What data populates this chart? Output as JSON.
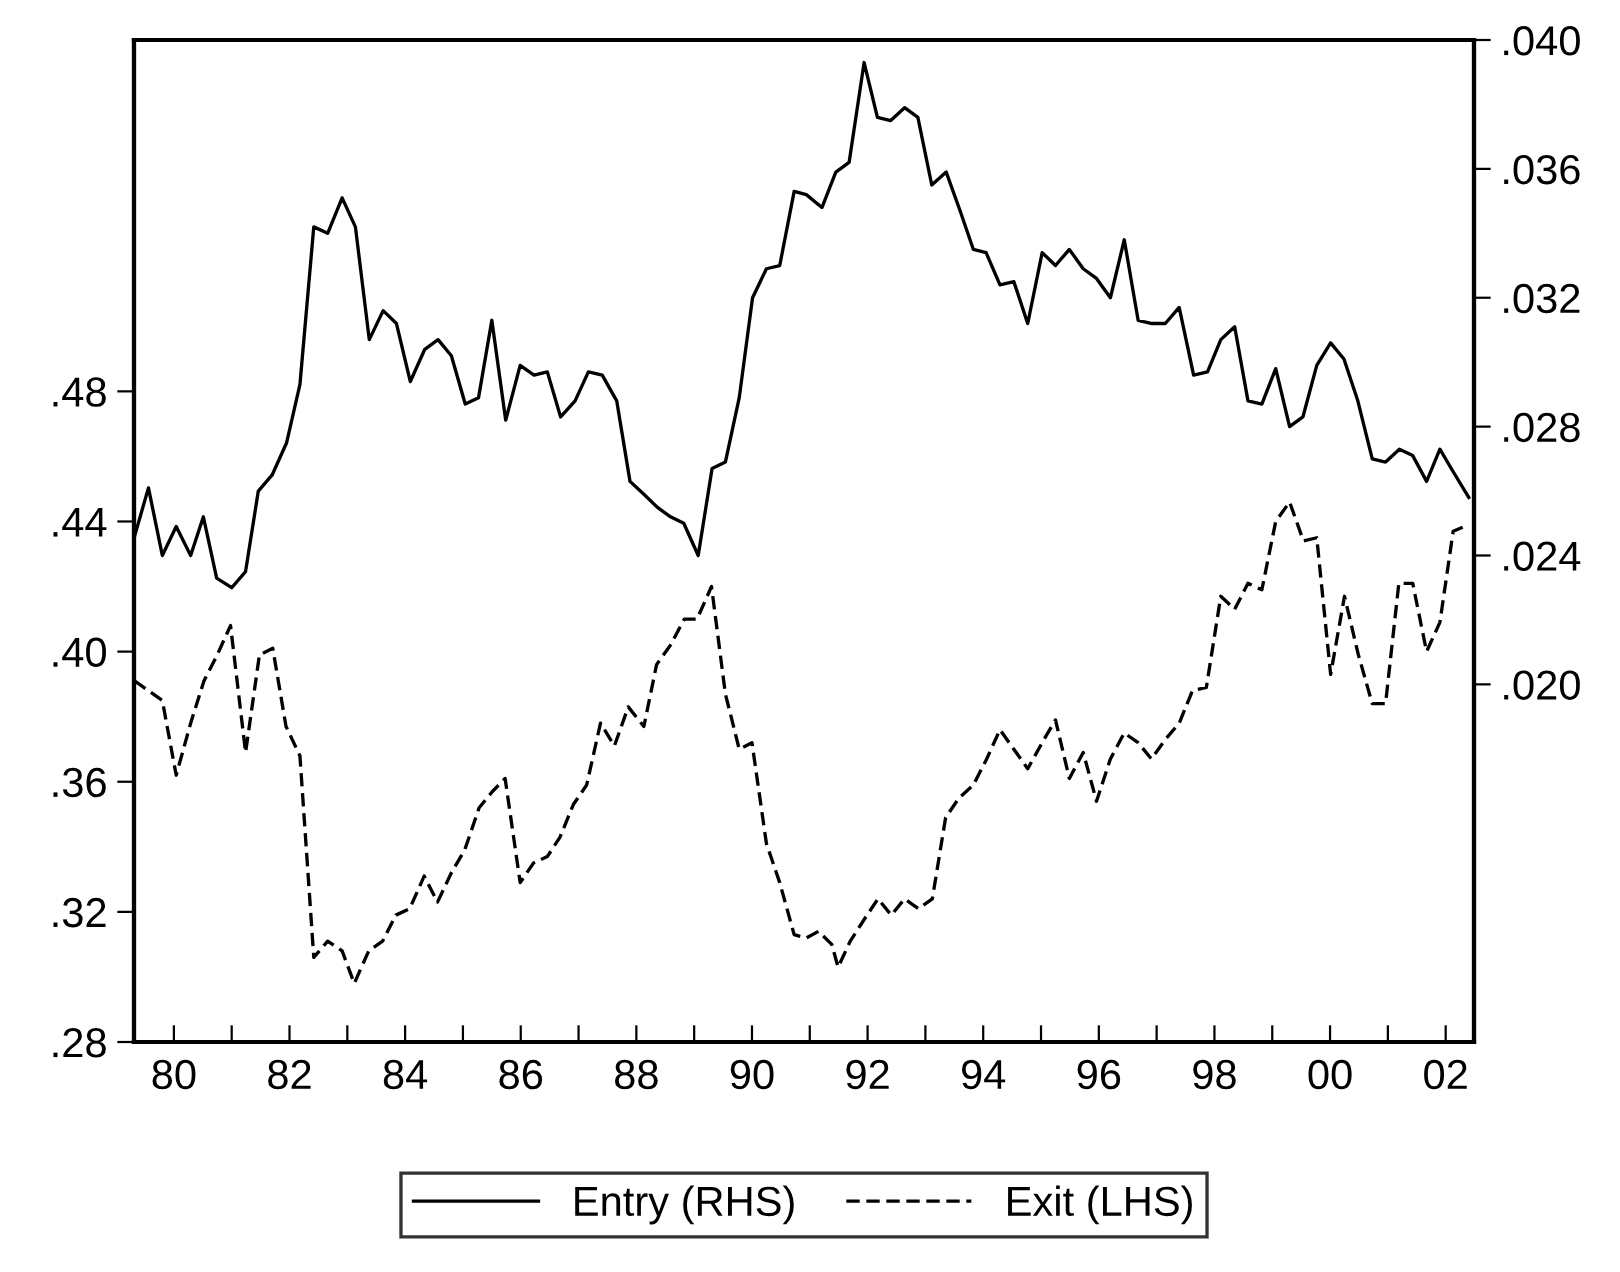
{
  "chart_data": {
    "type": "line",
    "xlim": [
      1979.31,
      2002.49
    ],
    "xticks": [
      {
        "value": 1980,
        "label": "80"
      },
      {
        "value": 1981,
        "label": null
      },
      {
        "value": 1982,
        "label": "82"
      },
      {
        "value": 1983,
        "label": null
      },
      {
        "value": 1984,
        "label": "84"
      },
      {
        "value": 1985,
        "label": null
      },
      {
        "value": 1986,
        "label": "86"
      },
      {
        "value": 1987,
        "label": null
      },
      {
        "value": 1988,
        "label": "88"
      },
      {
        "value": 1989,
        "label": null
      },
      {
        "value": 1990,
        "label": "90"
      },
      {
        "value": 1991,
        "label": null
      },
      {
        "value": 1992,
        "label": "92"
      },
      {
        "value": 1993,
        "label": null
      },
      {
        "value": 1994,
        "label": "94"
      },
      {
        "value": 1995,
        "label": null
      },
      {
        "value": 1996,
        "label": "96"
      },
      {
        "value": 1997,
        "label": null
      },
      {
        "value": 1998,
        "label": "98"
      },
      {
        "value": 1999,
        "label": null
      },
      {
        "value": 2000,
        "label": "00"
      },
      {
        "value": 2001,
        "label": null
      },
      {
        "value": 2002,
        "label": "02"
      }
    ],
    "ylim": [
      0.28,
      0.588
    ],
    "yticks": [
      {
        "value": 0.28,
        "label": ".28"
      },
      {
        "value": 0.32,
        "label": ".32"
      },
      {
        "value": 0.36,
        "label": ".36"
      },
      {
        "value": 0.4,
        "label": ".40"
      },
      {
        "value": 0.44,
        "label": ".44"
      },
      {
        "value": 0.48,
        "label": ".48"
      }
    ],
    "y2lim": [
      0.0089,
      0.04
    ],
    "y2ticks": [
      {
        "value": 0.02,
        "label": ".020"
      },
      {
        "value": 0.024,
        "label": ".024"
      },
      {
        "value": 0.028,
        "label": ".028"
      },
      {
        "value": 0.032,
        "label": ".032"
      },
      {
        "value": 0.036,
        "label": ".036"
      },
      {
        "value": 0.04,
        "label": ".040"
      }
    ],
    "grid": false,
    "legend": "bottom",
    "series": [
      {
        "name": "Entry (RHS)",
        "color": "#000000",
        "axis": "y2",
        "line_style": "solid",
        "x": [
          1979.32,
          1979.56,
          1979.8,
          1980.04,
          1980.29,
          1980.51,
          1980.74,
          1981.0,
          1981.24,
          1981.46,
          1981.7,
          1981.95,
          1982.18,
          1982.42,
          1982.66,
          1982.91,
          1983.14,
          1983.38,
          1983.62,
          1983.85,
          1984.09,
          1984.34,
          1984.57,
          1984.8,
          1985.04,
          1985.27,
          1985.5,
          1985.74,
          1985.99,
          1986.23,
          1986.46,
          1986.69,
          1986.94,
          1987.17,
          1987.41,
          1987.66,
          1987.89,
          1988.13,
          1988.36,
          1988.59,
          1988.82,
          1989.07,
          1989.31,
          1989.54,
          1989.78,
          1990.01,
          1990.25,
          1990.48,
          1990.73,
          1990.94,
          1991.21,
          1991.45,
          1991.68,
          1991.94,
          1992.17,
          1992.4,
          1992.64,
          1992.87,
          1993.11,
          1993.36,
          1993.6,
          1993.83,
          1994.05,
          1994.29,
          1994.53,
          1994.77,
          1995.02,
          1995.25,
          1995.49,
          1995.73,
          1995.96,
          1996.2,
          1996.44,
          1996.68,
          1996.92,
          1997.15,
          1997.39,
          1997.64,
          1997.88,
          1998.11,
          1998.35,
          1998.58,
          1998.82,
          1999.06,
          1999.3,
          1999.53,
          1999.77,
          2000.01,
          2000.24,
          2000.48,
          2000.73,
          2000.96,
          2001.2,
          2001.43,
          2001.67,
          2001.9,
          2002.13,
          2002.4
        ],
        "values": [
          0.0246,
          0.0261,
          0.024,
          0.0249,
          0.024,
          0.0252,
          0.0233,
          0.023,
          0.0235,
          0.026,
          0.0265,
          0.0275,
          0.0293,
          0.0342,
          0.034,
          0.0351,
          0.0342,
          0.0307,
          0.0316,
          0.0312,
          0.0294,
          0.0304,
          0.0307,
          0.0302,
          0.0287,
          0.0289,
          0.0313,
          0.0282,
          0.0299,
          0.0296,
          0.0297,
          0.0283,
          0.0288,
          0.0297,
          0.0296,
          0.0288,
          0.0263,
          0.0259,
          0.0255,
          0.0252,
          0.025,
          0.024,
          0.0267,
          0.0269,
          0.0289,
          0.032,
          0.0329,
          0.033,
          0.0353,
          0.0352,
          0.0348,
          0.0359,
          0.0362,
          0.0393,
          0.0376,
          0.0375,
          0.0379,
          0.0376,
          0.0355,
          0.0359,
          0.0347,
          0.0335,
          0.0334,
          0.0324,
          0.0325,
          0.0312,
          0.0334,
          0.033,
          0.0335,
          0.0329,
          0.0326,
          0.032,
          0.0338,
          0.0313,
          0.0312,
          0.0312,
          0.0317,
          0.0296,
          0.0297,
          0.0307,
          0.0311,
          0.0288,
          0.0287,
          0.0298,
          0.028,
          0.0283,
          0.0299,
          0.0306,
          0.0301,
          0.0288,
          0.027,
          0.0269,
          0.0273,
          0.0271,
          0.0263,
          0.0273,
          0.0266,
          0.0258
        ]
      },
      {
        "name": "Exit (LHS)",
        "color": "#000000",
        "line_style": "dashed",
        "x": [
          1979.32,
          1979.56,
          1979.8,
          1980.04,
          1980.29,
          1980.52,
          1980.75,
          1980.98,
          1981.24,
          1981.48,
          1981.71,
          1981.94,
          1982.18,
          1982.42,
          1982.66,
          1982.91,
          1983.12,
          1983.37,
          1983.61,
          1983.84,
          1984.08,
          1984.33,
          1984.56,
          1984.8,
          1985.03,
          1985.28,
          1985.51,
          1985.73,
          1985.99,
          1986.22,
          1986.46,
          1986.68,
          1986.91,
          1987.14,
          1987.38,
          1987.62,
          1987.86,
          1988.13,
          1988.35,
          1988.59,
          1988.83,
          1989.05,
          1989.3,
          1989.54,
          1989.78,
          1990.0,
          1990.25,
          1990.48,
          1990.73,
          1990.94,
          1991.15,
          1991.38,
          1991.49,
          1991.7,
          1991.99,
          1992.18,
          1992.41,
          1992.64,
          1992.88,
          1993.12,
          1993.35,
          1993.58,
          1993.83,
          1994.06,
          1994.29,
          1994.53,
          1994.77,
          1995.02,
          1995.25,
          1995.49,
          1995.73,
          1995.96,
          1996.2,
          1996.44,
          1996.68,
          1996.91,
          1997.15,
          1997.39,
          1997.62,
          1997.86,
          1998.11,
          1998.35,
          1998.58,
          1998.82,
          1999.06,
          1999.3,
          1999.54,
          1999.77,
          2000.01,
          2000.25,
          2000.49,
          2000.73,
          2000.96,
          2001.19,
          2001.43,
          2001.67,
          2001.9,
          2002.13,
          2002.4
        ],
        "values": [
          0.391,
          0.388,
          0.385,
          0.362,
          0.378,
          0.391,
          0.399,
          0.408,
          0.369,
          0.399,
          0.401,
          0.377,
          0.368,
          0.306,
          0.311,
          0.308,
          0.298,
          0.308,
          0.311,
          0.319,
          0.321,
          0.331,
          0.323,
          0.332,
          0.339,
          0.352,
          0.357,
          0.361,
          0.329,
          0.335,
          0.337,
          0.343,
          0.353,
          0.359,
          0.378,
          0.371,
          0.383,
          0.377,
          0.396,
          0.402,
          0.41,
          0.41,
          0.42,
          0.387,
          0.37,
          0.372,
          0.341,
          0.329,
          0.313,
          0.312,
          0.314,
          0.31,
          0.303,
          0.311,
          0.319,
          0.324,
          0.319,
          0.324,
          0.321,
          0.324,
          0.349,
          0.355,
          0.359,
          0.367,
          0.376,
          0.37,
          0.364,
          0.372,
          0.379,
          0.361,
          0.369,
          0.354,
          0.367,
          0.375,
          0.372,
          0.367,
          0.373,
          0.378,
          0.388,
          0.389,
          0.417,
          0.413,
          0.421,
          0.419,
          0.44,
          0.446,
          0.434,
          0.435,
          0.393,
          0.417,
          0.399,
          0.384,
          0.384,
          0.421,
          0.421,
          0.4,
          0.409,
          0.437,
          0.439
        ]
      }
    ]
  }
}
